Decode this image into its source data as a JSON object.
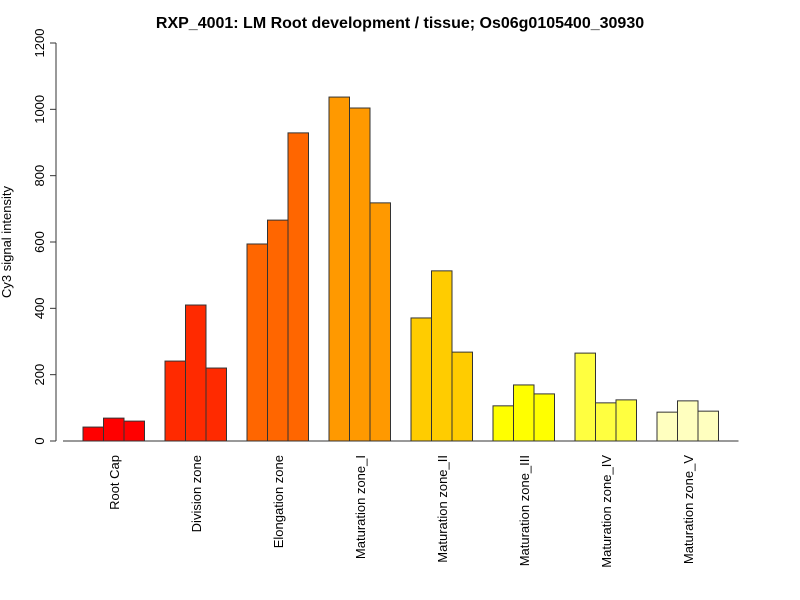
{
  "chart_data": {
    "type": "bar",
    "title": "RXP_4001: LM Root development / tissue; Os06g0105400_30930",
    "xlabel": "",
    "ylabel": "Cy3 signal intensity",
    "ylim": [
      0,
      1200
    ],
    "yticks": [
      0,
      200,
      400,
      600,
      800,
      1000,
      1200
    ],
    "grid": false,
    "legend": "none",
    "categories": [
      "Root Cap",
      "Division zone",
      "Elongation zone",
      "Maturation zone_I",
      "Maturation zone_II",
      "Maturation zone_III",
      "Maturation zone_IV",
      "Maturation zone_V"
    ],
    "colors": [
      "#FF0000",
      "#FF2A00",
      "#FF6600",
      "#FF9900",
      "#FFCC00",
      "#FFFF00",
      "#FFFF40",
      "#FFFFBF"
    ],
    "replicates": [
      [
        42,
        69,
        60
      ],
      [
        241,
        410,
        220
      ],
      [
        594,
        666,
        929
      ],
      [
        1037,
        1004,
        718
      ],
      [
        371,
        513,
        268
      ],
      [
        106,
        169,
        142
      ],
      [
        265,
        115,
        124
      ],
      [
        87,
        121,
        90
      ]
    ]
  }
}
